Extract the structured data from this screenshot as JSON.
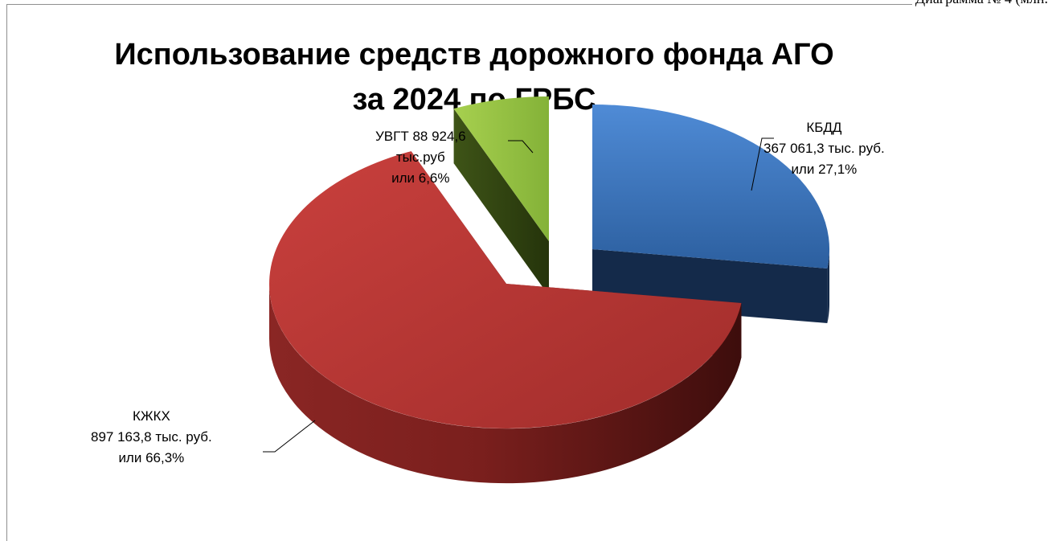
{
  "corner_caption": "Диаграмма  № 4  (млн.",
  "chart_data": {
    "type": "pie",
    "title": "Использование средств дорожного фонда АГО за 2024 по ГРБС",
    "title_lines": [
      "Использование средств дорожного фонда АГО",
      "за 2024 по ГРБС"
    ],
    "slices": [
      {
        "name": "КБДД",
        "value": 367061.3,
        "percent": 27.1,
        "color": "#3a74c0",
        "label_lines": [
          "КБДД",
          "367 061,3 тыс. руб.",
          "или 27,1%"
        ]
      },
      {
        "name": "КЖКХ",
        "value": 897163.8,
        "percent": 66.3,
        "color": "#b53533",
        "label_lines": [
          "КЖКХ",
          "897 163,8 тыс. руб.",
          "или 66,3%"
        ]
      },
      {
        "name": "УВГТ",
        "value": 88924.6,
        "percent": 6.6,
        "color": "#8dbb3c",
        "label_lines": [
          "УВГТ 88 924,6",
          "тыс.руб",
          "или 6,6%"
        ]
      }
    ],
    "unit": "тыс. руб.",
    "exploded": true,
    "three_d": true
  }
}
